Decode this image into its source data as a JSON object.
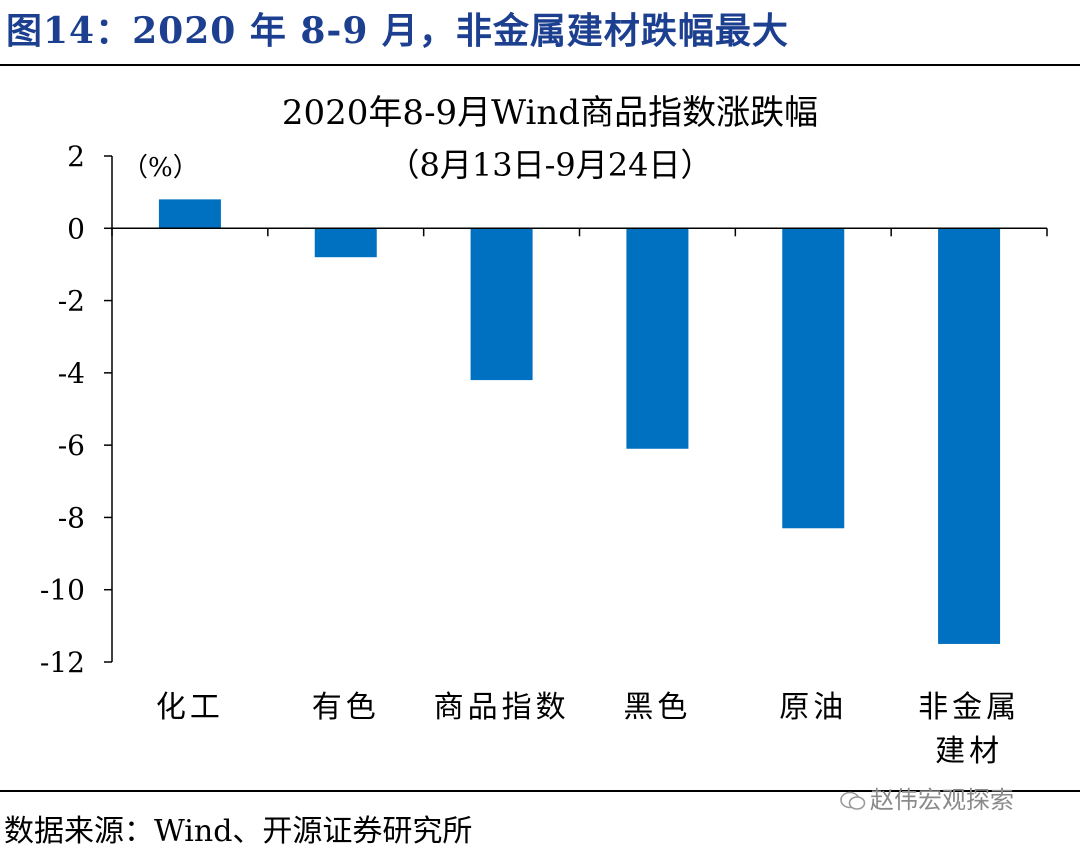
{
  "figure_title": "图14：2020 年 8-9 月，非金属建材跌幅最大",
  "source": "数据来源：Wind、开源证券研究所",
  "watermark": "赵伟宏观探索",
  "colors": {
    "bar": "#0070c0",
    "title": "#1c3f8f"
  },
  "chart_data": {
    "type": "bar",
    "title": "2020年8-9月Wind商品指数涨跌幅",
    "subtitle": "（8月13日-9月24日）",
    "unit": "（%）",
    "categories": [
      "化工",
      "有色",
      "商品指数",
      "黑色",
      "原油",
      "非金属建材"
    ],
    "category_lines": [
      [
        "化工"
      ],
      [
        "有色"
      ],
      [
        "商品指数"
      ],
      [
        "黑色"
      ],
      [
        "原油"
      ],
      [
        "非金属",
        "建材"
      ]
    ],
    "values": [
      0.8,
      -0.8,
      -4.2,
      -6.1,
      -8.3,
      -11.5
    ],
    "ylim": [
      -12,
      2
    ],
    "yticks": [
      2,
      0,
      -2,
      -4,
      -6,
      -8,
      -10,
      -12
    ],
    "grid": false,
    "legend": "none"
  }
}
